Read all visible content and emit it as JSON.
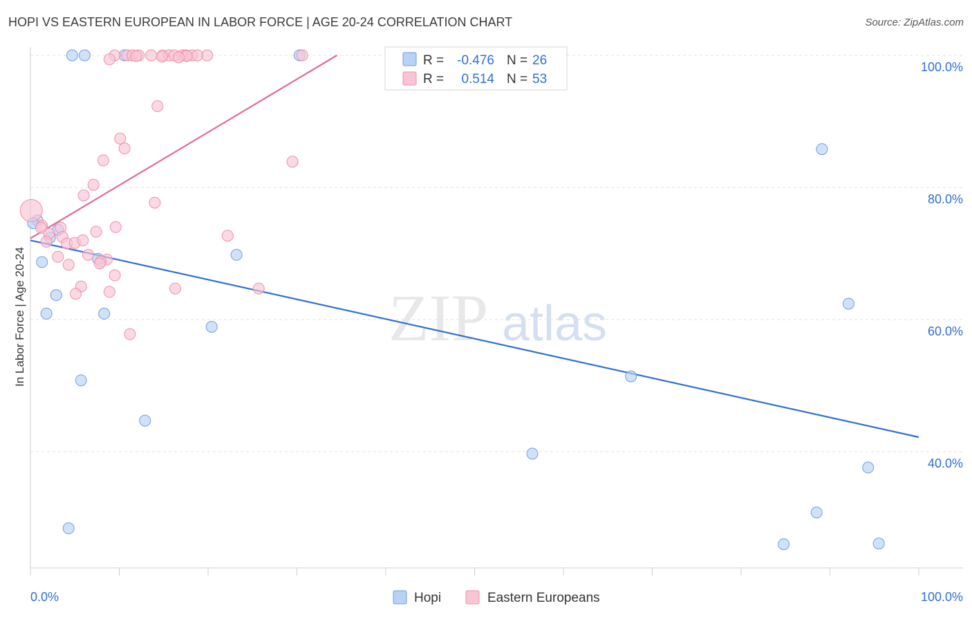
{
  "header": {
    "title": "HOPI VS EASTERN EUROPEAN IN LABOR FORCE | AGE 20-24 CORRELATION CHART",
    "source": "Source: ZipAtlas.com"
  },
  "watermark": {
    "part1": "ZIP",
    "part2": "atlas"
  },
  "chart_data": {
    "type": "scatter",
    "title": "HOPI VS EASTERN EUROPEAN IN LABOR FORCE | AGE 20-24 CORRELATION CHART",
    "xlabel": "",
    "ylabel": "In Labor Force | Age 20-24",
    "xlim": [
      0,
      100
    ],
    "ylim": [
      20,
      102
    ],
    "x_tick_labels": [
      "0.0%",
      "100.0%"
    ],
    "y_ticks": [
      {
        "value": 100,
        "label": "100.0%"
      },
      {
        "value": 80,
        "label": "80.0%"
      },
      {
        "value": 60,
        "label": "60.0%"
      },
      {
        "value": 40,
        "label": "40.0%"
      }
    ],
    "grid": true,
    "legend_position": "bottom-center",
    "stats": [
      {
        "series": "Hopi",
        "r_label": "R =",
        "r": "-0.476",
        "n_label": "N =",
        "n": "26"
      },
      {
        "series": "Eastern Europeans",
        "r_label": "R =",
        "r": "0.514",
        "n_label": "N =",
        "n": "53"
      }
    ],
    "series": [
      {
        "name": "Hopi",
        "color": "#6c9fe0",
        "fill": "#b8d1f5",
        "line_color": "#2f6fd0",
        "trend": [
          [
            0,
            72
          ],
          [
            100,
            42.2
          ]
        ],
        "points": [
          [
            4.7,
            100
          ],
          [
            6.1,
            100
          ],
          [
            10.6,
            100
          ],
          [
            30.3,
            100
          ],
          [
            0.8,
            75
          ],
          [
            3.1,
            73.6
          ],
          [
            2.2,
            72.4
          ],
          [
            1.3,
            68.7
          ],
          [
            7.6,
            69.2
          ],
          [
            23.2,
            69.8
          ],
          [
            2.9,
            63.7
          ],
          [
            1.8,
            60.9
          ],
          [
            8.3,
            60.9
          ],
          [
            20.4,
            58.9
          ],
          [
            5.7,
            50.8
          ],
          [
            12.9,
            44.7
          ],
          [
            4.3,
            28.4
          ],
          [
            89.1,
            85.8
          ],
          [
            92.1,
            62.4
          ],
          [
            67.6,
            51.4
          ],
          [
            56.5,
            39.7
          ],
          [
            94.3,
            37.6
          ],
          [
            88.5,
            30.8
          ],
          [
            84.8,
            26
          ],
          [
            95.5,
            26.1
          ],
          [
            0.3,
            74.6
          ]
        ]
      },
      {
        "name": "Eastern Europeans",
        "color": "#ec8fab",
        "fill": "#f9c5d4",
        "line_color": "#e06a92",
        "trend": [
          [
            0,
            72.3
          ],
          [
            34.5,
            100
          ]
        ],
        "points": [
          [
            9.5,
            100
          ],
          [
            10.9,
            100
          ],
          [
            11.5,
            100
          ],
          [
            12.2,
            100
          ],
          [
            13.6,
            100
          ],
          [
            14.9,
            100
          ],
          [
            15.6,
            100
          ],
          [
            16.2,
            100
          ],
          [
            17.1,
            100
          ],
          [
            17.5,
            100
          ],
          [
            18.2,
            100
          ],
          [
            18.8,
            100
          ],
          [
            19.9,
            100
          ],
          [
            30.6,
            100
          ],
          [
            8.9,
            99.4
          ],
          [
            14.8,
            99.8
          ],
          [
            17.6,
            99.9
          ],
          [
            16.7,
            99.7
          ],
          [
            11.9,
            99.9
          ],
          [
            14.3,
            92.3
          ],
          [
            10.1,
            87.4
          ],
          [
            10.6,
            85.9
          ],
          [
            8.2,
            84.1
          ],
          [
            29.5,
            83.9
          ],
          [
            7.1,
            80.4
          ],
          [
            6,
            78.8
          ],
          [
            14,
            77.7
          ],
          [
            0.1,
            76.5
          ],
          [
            1.3,
            74.2
          ],
          [
            3.4,
            73.9
          ],
          [
            7.4,
            73.3
          ],
          [
            9.6,
            74
          ],
          [
            2.1,
            73
          ],
          [
            3.6,
            72.5
          ],
          [
            22.2,
            72.7
          ],
          [
            1.8,
            71.8
          ],
          [
            4.1,
            71.5
          ],
          [
            5,
            71.6
          ],
          [
            5.9,
            72
          ],
          [
            6.5,
            69.8
          ],
          [
            3.1,
            69.5
          ],
          [
            8.6,
            69.1
          ],
          [
            7.9,
            68.8
          ],
          [
            4.3,
            68.3
          ],
          [
            7.8,
            68.5
          ],
          [
            9.5,
            66.7
          ],
          [
            5.7,
            65
          ],
          [
            8.9,
            64.2
          ],
          [
            16.3,
            64.7
          ],
          [
            25.7,
            64.7
          ],
          [
            5.1,
            63.9
          ],
          [
            11.2,
            57.8
          ],
          [
            1.2,
            73.9
          ]
        ]
      }
    ]
  }
}
